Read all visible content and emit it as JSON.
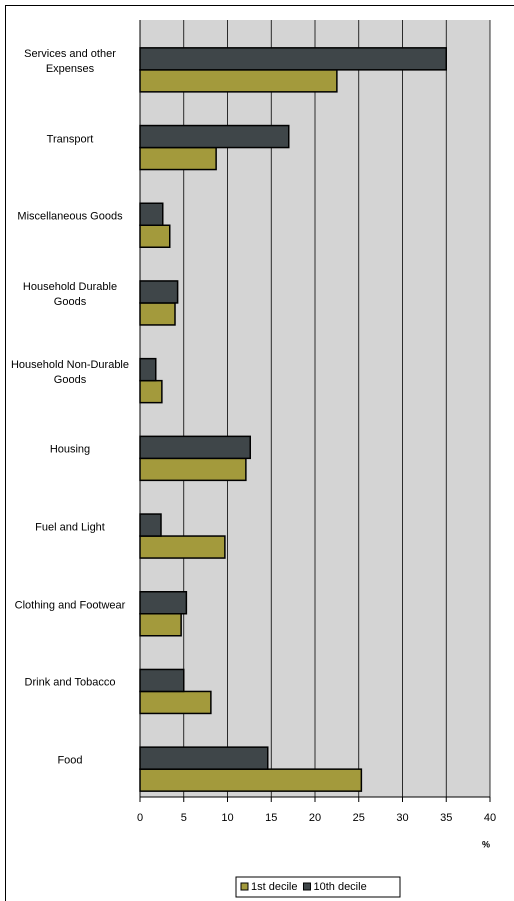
{
  "chart_data": {
    "type": "barh",
    "categories": [
      "Services and other Expenses",
      "Transport",
      "Miscellaneous Goods",
      "Household Durable Goods",
      "Household Non-Durable Goods",
      "Housing",
      "Fuel and Light",
      "Clothing and Footwear",
      "Drink and Tobacco",
      "Food"
    ],
    "series": [
      {
        "name": "1st decile",
        "color": "#a39a3c",
        "values": [
          22.5,
          8.7,
          3.4,
          4.0,
          2.5,
          12.1,
          9.7,
          4.7,
          8.1,
          25.3
        ]
      },
      {
        "name": "10th decile",
        "color": "#3f4649",
        "values": [
          35.0,
          17.0,
          2.6,
          4.3,
          1.8,
          12.6,
          2.4,
          5.3,
          5.0,
          14.6
        ]
      }
    ],
    "xlabel": "%",
    "xlim": [
      0,
      40
    ],
    "xticks": [
      0,
      5,
      10,
      15,
      20,
      25,
      30,
      35,
      40
    ],
    "grid": true,
    "legend": "bottom"
  }
}
